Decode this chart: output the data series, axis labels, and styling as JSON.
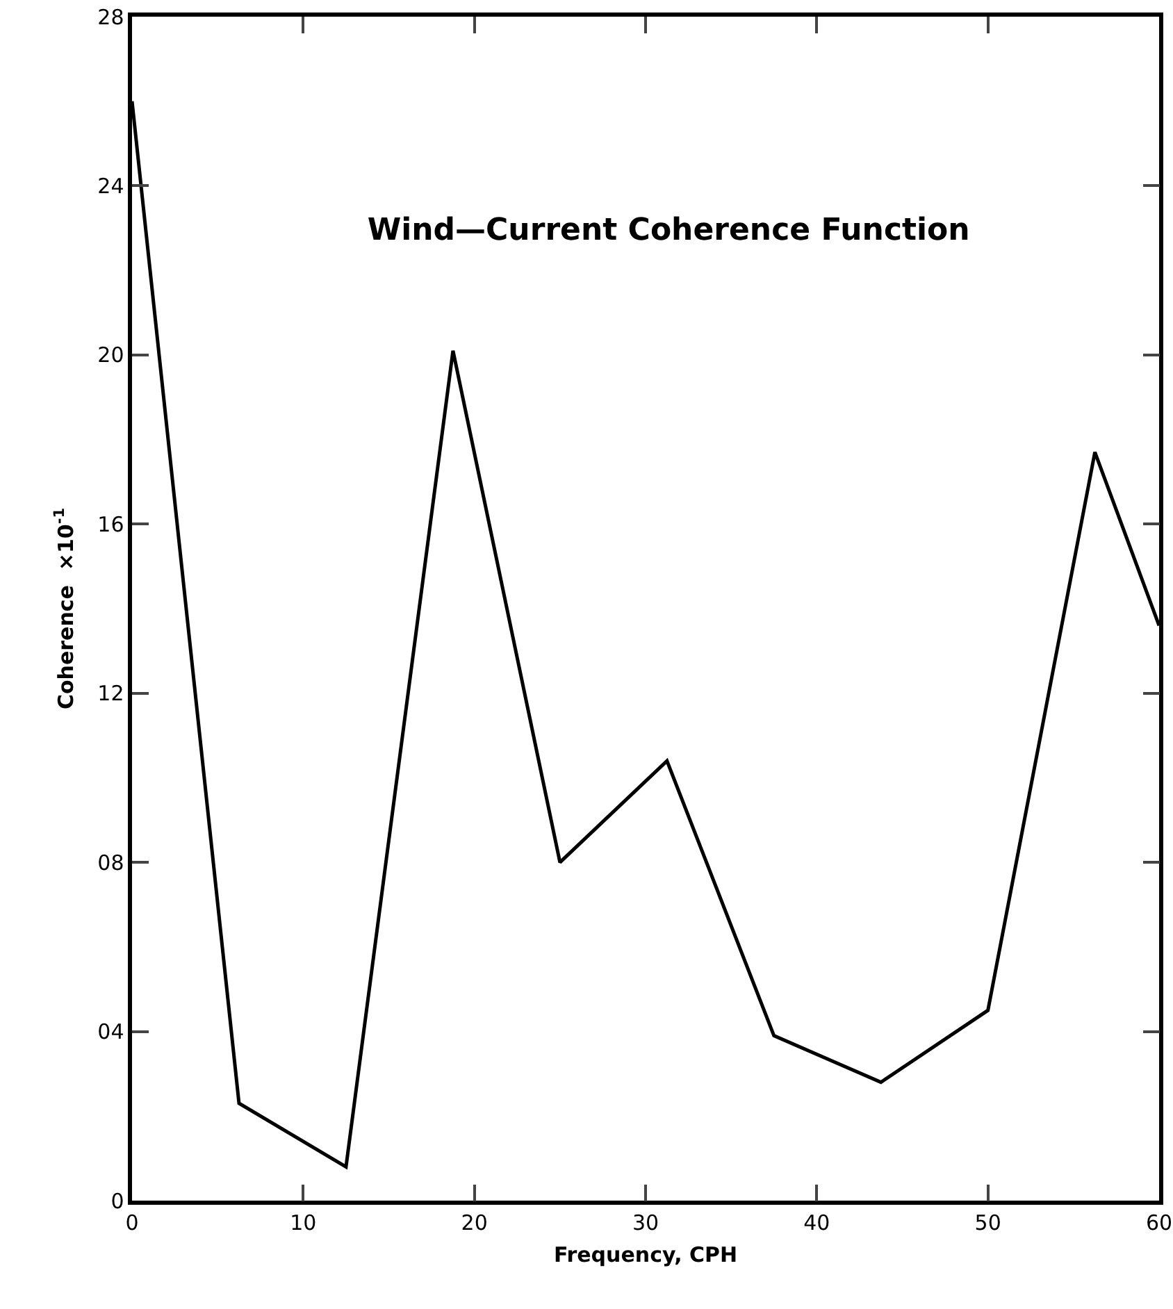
{
  "chart_data": {
    "type": "line",
    "title": "Wind—Current Coherence Function",
    "xlabel": "Frequency, CPH",
    "ylabel": "Coherence  ×10$^{-1}$",
    "x": [
      0,
      6.25,
      12.5,
      18.75,
      25,
      31.25,
      37.5,
      43.75,
      50,
      56.25,
      60
    ],
    "series": [
      {
        "color": "#000000",
        "values": [
          26,
          2.3,
          0.8,
          20.1,
          8,
          10.4,
          3.9,
          2.8,
          4.5,
          17.7,
          13.6
        ]
      }
    ],
    "xlim": [
      0,
      60
    ],
    "xticks": [
      0,
      10,
      20,
      30,
      40,
      50,
      60
    ],
    "ylim": [
      0,
      28
    ],
    "yticks": [
      0,
      {
        "value": 4,
        "label": "04"
      },
      {
        "value": 8,
        "label": "08"
      },
      12,
      16,
      20,
      24,
      28
    ],
    "grid": false,
    "marker": "none",
    "line_style": "solid"
  }
}
